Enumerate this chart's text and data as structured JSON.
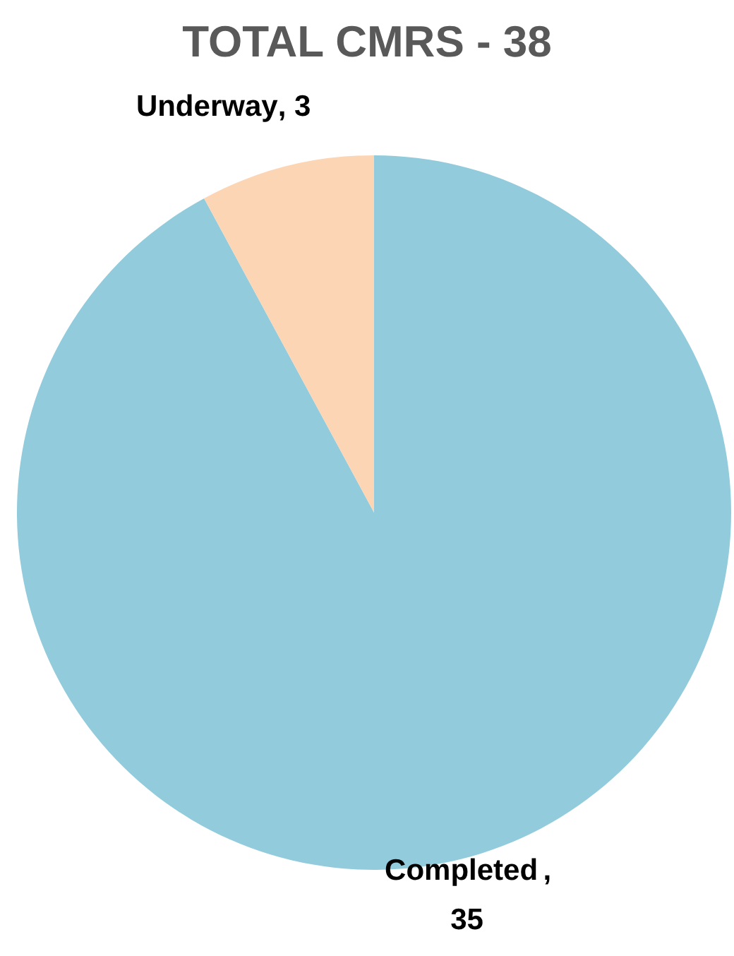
{
  "chart_data": {
    "type": "pie",
    "title": "TOTAL CMRS - 38",
    "categories": [
      "Completed",
      "Underway"
    ],
    "values": [
      35,
      3
    ],
    "colors": [
      "#92cbdc",
      "#fcd5b5"
    ],
    "value_labels": [
      ", 35",
      ", 3"
    ]
  }
}
